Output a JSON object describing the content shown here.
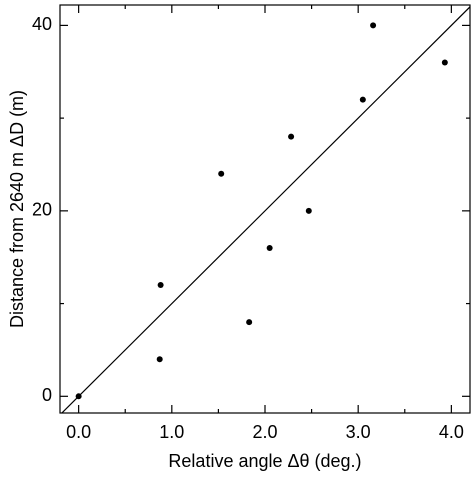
{
  "chart_data": {
    "type": "scatter",
    "x_label": "Relative angle   Δθ (deg.)",
    "y_label": "Distance from 2640 m   ΔD (m)",
    "x": [
      0,
      0.87,
      0.88,
      1.53,
      1.83,
      2.05,
      2.28,
      2.47,
      3.05,
      3.16,
      3.93
    ],
    "values": [
      0,
      4,
      12,
      24,
      8,
      16,
      28,
      20,
      32,
      40,
      36
    ],
    "color": "#000000",
    "fit_line": {
      "x": [
        -0.2,
        4.2
      ],
      "y": [
        -2,
        42
      ]
    },
    "xlim": [
      -0.2,
      4.2
    ],
    "ylim": [
      -1.8,
      42.2
    ],
    "xticks": [
      {
        "value": 0,
        "label": "0.0"
      },
      {
        "value": 1,
        "label": "1.0"
      },
      {
        "value": 2,
        "label": "2.0"
      },
      {
        "value": 3,
        "label": "3.0"
      },
      {
        "value": 4,
        "label": "4.0"
      }
    ],
    "x_minor_ticks": [
      0.5,
      1.5,
      2.5,
      3.5
    ],
    "yticks": [
      0,
      20,
      40
    ],
    "y_minor_ticks": [
      10,
      30
    ],
    "grid": false
  }
}
